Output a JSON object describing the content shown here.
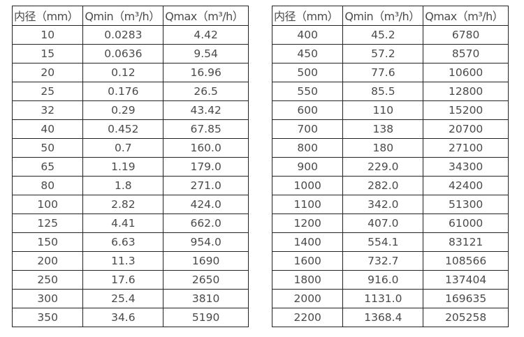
{
  "colors": {
    "background": "#ffffff",
    "border": "#222222",
    "text": "#4a4a4a"
  },
  "tables": [
    {
      "name": "small-diameter-flow-table",
      "headers": [
        "内径（mm）",
        "Qmin（m³/h）",
        "Qmax（m³/h）"
      ],
      "rows": [
        [
          "10",
          "0.0283",
          "4.42"
        ],
        [
          "15",
          "0.0636",
          "9.54"
        ],
        [
          "20",
          "0.12",
          "16.96"
        ],
        [
          "25",
          "0.176",
          "26.5"
        ],
        [
          "32",
          "0.29",
          "43.42"
        ],
        [
          "40",
          "0.452",
          "67.85"
        ],
        [
          "50",
          "0.7",
          "160.0"
        ],
        [
          "65",
          "1.19",
          "179.0"
        ],
        [
          "80",
          "1.8",
          "271.0"
        ],
        [
          "100",
          "2.82",
          "424.0"
        ],
        [
          "125",
          "4.41",
          "662.0"
        ],
        [
          "150",
          "6.63",
          "954.0"
        ],
        [
          "200",
          "11.3",
          "1690"
        ],
        [
          "250",
          "17.6",
          "2650"
        ],
        [
          "300",
          "25.4",
          "3810"
        ],
        [
          "350",
          "34.6",
          "5190"
        ]
      ]
    },
    {
      "name": "large-diameter-flow-table",
      "headers": [
        "内径（mm）",
        "Qmin（m³/h）",
        "Qmax（m³/h）"
      ],
      "rows": [
        [
          "400",
          "45.2",
          "6780"
        ],
        [
          "450",
          "57.2",
          "8570"
        ],
        [
          "500",
          "77.6",
          "10600"
        ],
        [
          "550",
          "85.5",
          "12800"
        ],
        [
          "600",
          "110",
          "15200"
        ],
        [
          "700",
          "138",
          "20700"
        ],
        [
          "800",
          "180",
          "27100"
        ],
        [
          "900",
          "229.0",
          "34300"
        ],
        [
          "1000",
          "282.0",
          "42400"
        ],
        [
          "1100",
          "342.0",
          "51300"
        ],
        [
          "1200",
          "407.0",
          "61000"
        ],
        [
          "1400",
          "554.1",
          "83121"
        ],
        [
          "1600",
          "732.7",
          "108566"
        ],
        [
          "1800",
          "916.0",
          "137404"
        ],
        [
          "2000",
          "1131.0",
          "169635"
        ],
        [
          "2200",
          "1368.4",
          "205258"
        ]
      ]
    }
  ],
  "chart_data": [
    {
      "type": "table",
      "title": "",
      "columns": [
        "内径（mm）",
        "Qmin（m³/h）",
        "Qmax（m³/h）"
      ],
      "inner_diameter_mm": [
        10,
        15,
        20,
        25,
        32,
        40,
        50,
        65,
        80,
        100,
        125,
        150,
        200,
        250,
        300,
        350
      ],
      "qmin_m3h": [
        0.0283,
        0.0636,
        0.12,
        0.176,
        0.29,
        0.452,
        0.7,
        1.19,
        1.8,
        2.82,
        4.41,
        6.63,
        11.3,
        17.6,
        25.4,
        34.6
      ],
      "qmax_m3h": [
        4.42,
        9.54,
        16.96,
        26.5,
        43.42,
        67.85,
        160.0,
        179.0,
        271.0,
        424.0,
        662.0,
        954.0,
        1690,
        2650,
        3810,
        5190
      ]
    },
    {
      "type": "table",
      "title": "",
      "columns": [
        "内径（mm）",
        "Qmin（m³/h）",
        "Qmax（m³/h）"
      ],
      "inner_diameter_mm": [
        400,
        450,
        500,
        550,
        600,
        700,
        800,
        900,
        1000,
        1100,
        1200,
        1400,
        1600,
        1800,
        2000,
        2200
      ],
      "qmin_m3h": [
        45.2,
        57.2,
        77.6,
        85.5,
        110,
        138,
        180,
        229.0,
        282.0,
        342.0,
        407.0,
        554.1,
        732.7,
        916.0,
        1131.0,
        1368.4
      ],
      "qmax_m3h": [
        6780,
        8570,
        10600,
        12800,
        15200,
        20700,
        27100,
        34300,
        42400,
        51300,
        61000,
        83121,
        108566,
        137404,
        169635,
        205258
      ]
    }
  ]
}
